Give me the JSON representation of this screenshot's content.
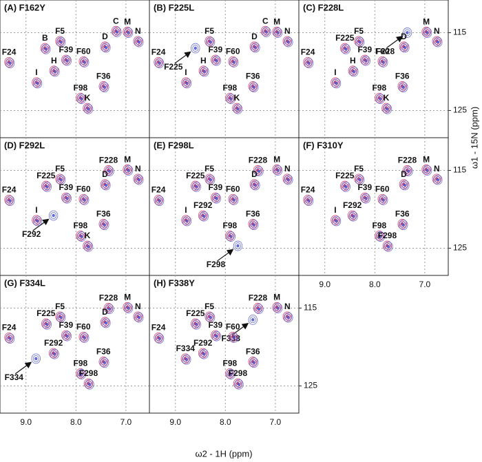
{
  "figure": {
    "x_axis_title": "ω2 - 1H (ppm)",
    "y_axis_title": "ω1 - 15N (ppm)",
    "xlim": [
      9.52,
      6.53
    ],
    "ylim": [
      110.8,
      128.5
    ],
    "xticks": [
      {
        "value": 9,
        "label": "9.0"
      },
      {
        "value": 8,
        "label": "8.0"
      },
      {
        "value": 7,
        "label": "7.0"
      }
    ],
    "yticks": [
      115,
      125
    ],
    "grid": true,
    "colors": [
      "#d4224a",
      "#4b55d0"
    ],
    "peaks": {
      "F24": [
        9.34,
        118.8
      ],
      "B": [
        8.62,
        117.0
      ],
      "F5": [
        8.32,
        116.1
      ],
      "F39": [
        8.2,
        118.5
      ],
      "F60": [
        7.85,
        118.7
      ],
      "C": [
        7.2,
        114.8
      ],
      "M": [
        6.97,
        114.9
      ],
      "D": [
        7.42,
        116.8
      ],
      "N": [
        6.76,
        116.1
      ],
      "H": [
        8.44,
        119.9
      ],
      "I": [
        8.79,
        121.4
      ],
      "F36": [
        7.45,
        121.9
      ],
      "F98": [
        7.91,
        123.4
      ],
      "K": [
        7.77,
        124.7
      ],
      "F225": [
        8.6,
        117.0
      ],
      "F228": [
        7.35,
        115.0
      ],
      "F292": [
        8.45,
        120.8
      ],
      "F298": [
        7.75,
        124.7
      ],
      "F334": [
        8.8,
        121.5
      ],
      "F338": [
        7.45,
        116.5
      ]
    },
    "panels": [
      {
        "title": "(A) F162Y",
        "labels": [
          "F24",
          "B",
          "F5",
          "F39",
          "F60",
          "C",
          "M",
          "D",
          "N",
          "H",
          "I",
          "F36",
          "F98",
          "K"
        ]
      },
      {
        "title": "(B) F225L",
        "arrow": "F225",
        "labels": [
          "F24",
          "F225",
          "F5",
          "F39",
          "F60",
          "C",
          "M",
          "D",
          "N",
          "H",
          "I",
          "F36",
          "F98",
          "K"
        ]
      },
      {
        "title": "(C) F228L",
        "arrow": "F228",
        "labels": [
          "F24",
          "F225",
          "F5",
          "F228",
          "M",
          "D",
          "N",
          "F39",
          "F60",
          "H",
          "I",
          "F36",
          "F98",
          "K"
        ]
      },
      {
        "title": "(D) F292L",
        "arrow": "F292",
        "labels": [
          "F24",
          "F225",
          "F5",
          "F228",
          "M",
          "F39",
          "F60",
          "D",
          "N",
          "F292",
          "I",
          "F98",
          "F36",
          "K"
        ]
      },
      {
        "title": "(E) F298L",
        "arrow": "F298",
        "labels": [
          "F228",
          "M",
          "F5",
          "F225",
          "F60",
          "F39",
          "F24",
          "D",
          "N",
          "F292",
          "F98",
          "F36",
          "I",
          "F298"
        ]
      },
      {
        "title": "(F) F310Y",
        "labels": [
          "F228",
          "M",
          "F225",
          "F5",
          "F39",
          "F60",
          "F24",
          "D",
          "N",
          "F292",
          "F36",
          "F98",
          "I",
          "F298"
        ]
      },
      {
        "title": "(G) F334L",
        "arrow": "F334",
        "labels": [
          "F5",
          "F225",
          "F228",
          "M",
          "F39",
          "F24",
          "D",
          "N",
          "F60",
          "F36",
          "F292",
          "F98",
          "F334",
          "F298"
        ]
      },
      {
        "title": "(H) F338Y",
        "arrow": "F338",
        "labels": [
          "F5",
          "F225",
          "F228",
          "M",
          "F39",
          "F24",
          "F338",
          "N",
          "F292",
          "F60",
          "F36",
          "F98",
          "F334",
          "F298"
        ]
      }
    ]
  }
}
